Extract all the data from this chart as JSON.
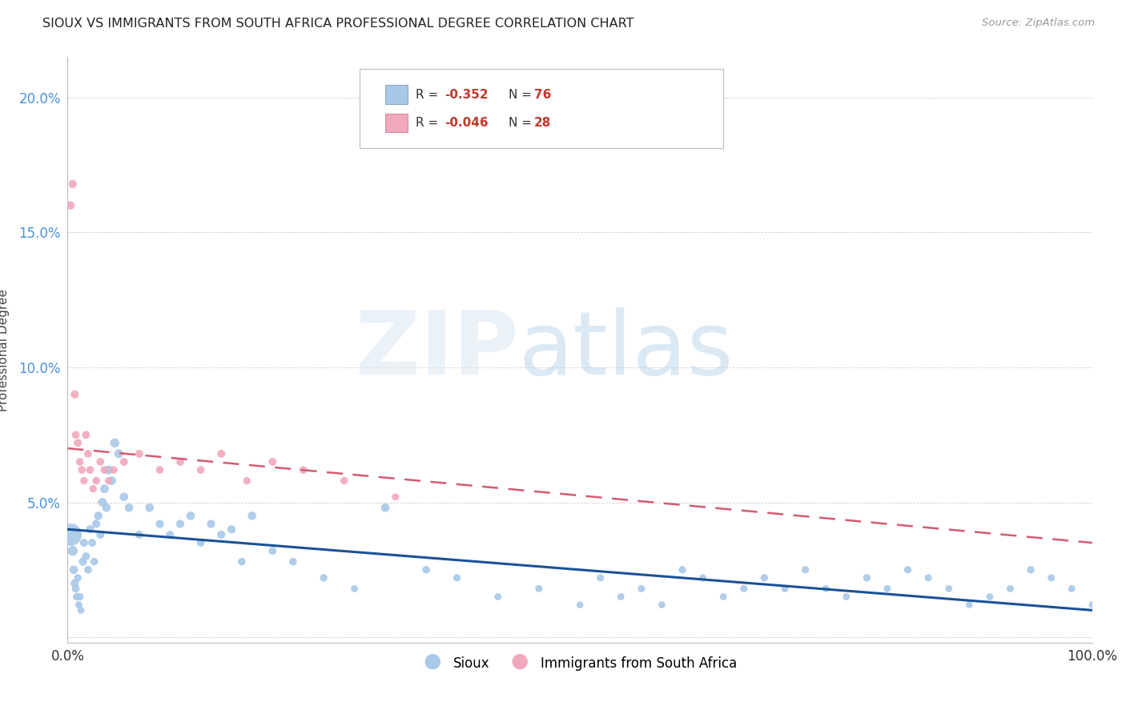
{
  "title": "SIOUX VS IMMIGRANTS FROM SOUTH AFRICA PROFESSIONAL DEGREE CORRELATION CHART",
  "source": "Source: ZipAtlas.com",
  "ylabel": "Professional Degree",
  "xlim": [
    0,
    1.0
  ],
  "ylim": [
    -0.002,
    0.215
  ],
  "yticks": [
    0.0,
    0.05,
    0.1,
    0.15,
    0.2
  ],
  "ytick_labels": [
    "",
    "5.0%",
    "10.0%",
    "15.0%",
    "20.0%"
  ],
  "xticks": [
    0.0,
    0.25,
    0.5,
    0.75,
    1.0
  ],
  "xtick_labels": [
    "0.0%",
    "",
    "",
    "",
    "100.0%"
  ],
  "sioux_color": "#a8c8e8",
  "immigrant_color": "#f2a8bc",
  "sioux_line_color": "#1a5296",
  "immigrant_line_color": "#d45a72",
  "sioux_R": -0.352,
  "sioux_N": 76,
  "immigrant_R": -0.046,
  "immigrant_N": 28,
  "legend_label_1": "Sioux",
  "legend_label_2": "Immigrants from South Africa",
  "sioux_x": [
    0.003,
    0.005,
    0.006,
    0.007,
    0.008,
    0.009,
    0.01,
    0.011,
    0.012,
    0.013,
    0.015,
    0.016,
    0.018,
    0.02,
    0.022,
    0.024,
    0.026,
    0.028,
    0.03,
    0.032,
    0.034,
    0.036,
    0.038,
    0.04,
    0.043,
    0.046,
    0.05,
    0.055,
    0.06,
    0.07,
    0.08,
    0.09,
    0.1,
    0.11,
    0.12,
    0.13,
    0.14,
    0.15,
    0.16,
    0.17,
    0.18,
    0.2,
    0.22,
    0.25,
    0.28,
    0.31,
    0.35,
    0.38,
    0.42,
    0.46,
    0.5,
    0.52,
    0.54,
    0.56,
    0.58,
    0.6,
    0.62,
    0.64,
    0.66,
    0.68,
    0.7,
    0.72,
    0.74,
    0.76,
    0.78,
    0.8,
    0.82,
    0.84,
    0.86,
    0.88,
    0.9,
    0.92,
    0.94,
    0.96,
    0.98,
    1.0
  ],
  "sioux_y": [
    0.038,
    0.032,
    0.025,
    0.02,
    0.018,
    0.015,
    0.022,
    0.012,
    0.015,
    0.01,
    0.028,
    0.035,
    0.03,
    0.025,
    0.04,
    0.035,
    0.028,
    0.042,
    0.045,
    0.038,
    0.05,
    0.055,
    0.048,
    0.062,
    0.058,
    0.072,
    0.068,
    0.052,
    0.048,
    0.038,
    0.048,
    0.042,
    0.038,
    0.042,
    0.045,
    0.035,
    0.042,
    0.038,
    0.04,
    0.028,
    0.045,
    0.032,
    0.028,
    0.022,
    0.018,
    0.048,
    0.025,
    0.022,
    0.015,
    0.018,
    0.012,
    0.022,
    0.015,
    0.018,
    0.012,
    0.025,
    0.022,
    0.015,
    0.018,
    0.022,
    0.018,
    0.025,
    0.018,
    0.015,
    0.022,
    0.018,
    0.025,
    0.022,
    0.018,
    0.012,
    0.015,
    0.018,
    0.025,
    0.022,
    0.018,
    0.012
  ],
  "sioux_sizes": [
    400,
    80,
    60,
    55,
    50,
    48,
    45,
    42,
    45,
    40,
    55,
    52,
    50,
    48,
    55,
    50,
    48,
    55,
    58,
    52,
    60,
    62,
    58,
    65,
    62,
    68,
    65,
    60,
    58,
    52,
    58,
    55,
    52,
    55,
    58,
    50,
    55,
    52,
    55,
    48,
    58,
    50,
    48,
    45,
    42,
    58,
    48,
    45,
    40,
    42,
    38,
    42,
    40,
    42,
    38,
    45,
    42,
    40,
    42,
    45,
    42,
    45,
    42,
    40,
    45,
    42,
    45,
    42,
    40,
    38,
    40,
    42,
    45,
    42,
    40,
    38
  ],
  "immigrant_x": [
    0.003,
    0.005,
    0.007,
    0.008,
    0.01,
    0.012,
    0.014,
    0.016,
    0.018,
    0.02,
    0.022,
    0.025,
    0.028,
    0.032,
    0.036,
    0.04,
    0.045,
    0.055,
    0.07,
    0.09,
    0.11,
    0.13,
    0.15,
    0.175,
    0.2,
    0.23,
    0.27,
    0.32
  ],
  "immigrant_y": [
    0.16,
    0.168,
    0.09,
    0.075,
    0.072,
    0.065,
    0.062,
    0.058,
    0.075,
    0.068,
    0.062,
    0.055,
    0.058,
    0.065,
    0.062,
    0.058,
    0.062,
    0.065,
    0.068,
    0.062,
    0.065,
    0.062,
    0.068,
    0.058,
    0.065,
    0.062,
    0.058,
    0.052
  ],
  "immigrant_sizes": [
    55,
    55,
    52,
    50,
    50,
    48,
    48,
    45,
    50,
    48,
    48,
    45,
    48,
    50,
    48,
    45,
    48,
    50,
    52,
    48,
    50,
    48,
    52,
    45,
    50,
    48,
    45,
    42
  ]
}
